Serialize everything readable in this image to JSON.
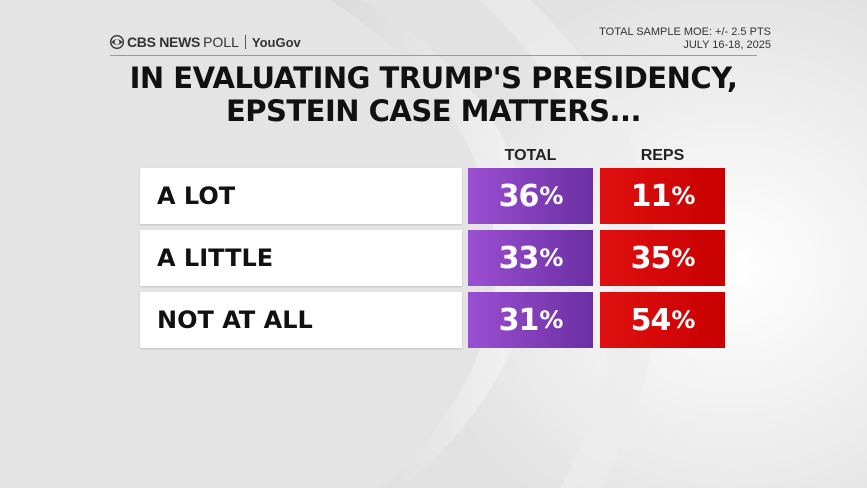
{
  "header": {
    "brand": "CBS NEWS",
    "poll": "POLL",
    "partner": "YouGov",
    "moe": "TOTAL SAMPLE MOE: +/- 2.5 PTS",
    "dates": "JULY 16-18, 2025"
  },
  "title_line1": "IN EVALUATING TRUMP'S PRESIDENCY,",
  "title_line2": "EPSTEIN CASE MATTERS...",
  "colors": {
    "total": "#7b3db8",
    "reps": "#d40000"
  },
  "chart_data": {
    "type": "table",
    "title": "IN EVALUATING TRUMP'S PRESIDENCY, EPSTEIN CASE MATTERS...",
    "columns": [
      "TOTAL",
      "REPS"
    ],
    "categories": [
      "A LOT",
      "A LITTLE",
      "NOT AT ALL"
    ],
    "series": [
      {
        "name": "TOTAL",
        "values": [
          36,
          33,
          31
        ]
      },
      {
        "name": "REPS",
        "values": [
          11,
          35,
          54
        ]
      }
    ],
    "unit": "%"
  }
}
